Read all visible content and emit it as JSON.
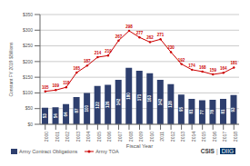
{
  "chart_data": {
    "type": "bar",
    "xlabel": "Fiscal Year",
    "ylabel": "Constant FY 2019 $Billions",
    "categories": [
      "2000",
      "2001",
      "2002",
      "2003",
      "2004",
      "2005",
      "2006",
      "2007",
      "2008",
      "2009",
      "2010",
      "2011",
      "2012",
      "2013",
      "2014",
      "2015",
      "2016",
      "2017",
      "2018"
    ],
    "series": [
      {
        "name": "Army Contract Obligations",
        "type": "bar",
        "color": "#2E3F6E",
        "values": [
          53,
          54,
          64,
          87,
          100,
          122,
          126,
          142,
          180,
          171,
          163,
          142,
          128,
          95,
          81,
          77,
          78,
          81,
          93
        ]
      },
      {
        "name": "Army TOA",
        "type": "line",
        "color": "#CC0000",
        "marker": "circle",
        "values": [
          105,
          109,
          118,
          165,
          187,
          214,
          219,
          267,
          298,
          277,
          262,
          271,
          230,
          192,
          174,
          168,
          159,
          164,
          181
        ]
      }
    ],
    "ylim": [
      0,
      350
    ],
    "yticks": [
      {
        "value": 0,
        "label": "$0"
      },
      {
        "value": 50,
        "label": "$50"
      },
      {
        "value": 100,
        "label": "$100"
      },
      {
        "value": 150,
        "label": "$150"
      },
      {
        "value": 200,
        "label": "$200"
      },
      {
        "value": 250,
        "label": "$250"
      },
      {
        "value": 300,
        "label": "$300"
      },
      {
        "value": 350,
        "label": "$350"
      }
    ],
    "grid": true,
    "legend": "bottom",
    "data_labels": true,
    "annotations": [
      "CSIS",
      "|",
      "DIIG"
    ]
  }
}
